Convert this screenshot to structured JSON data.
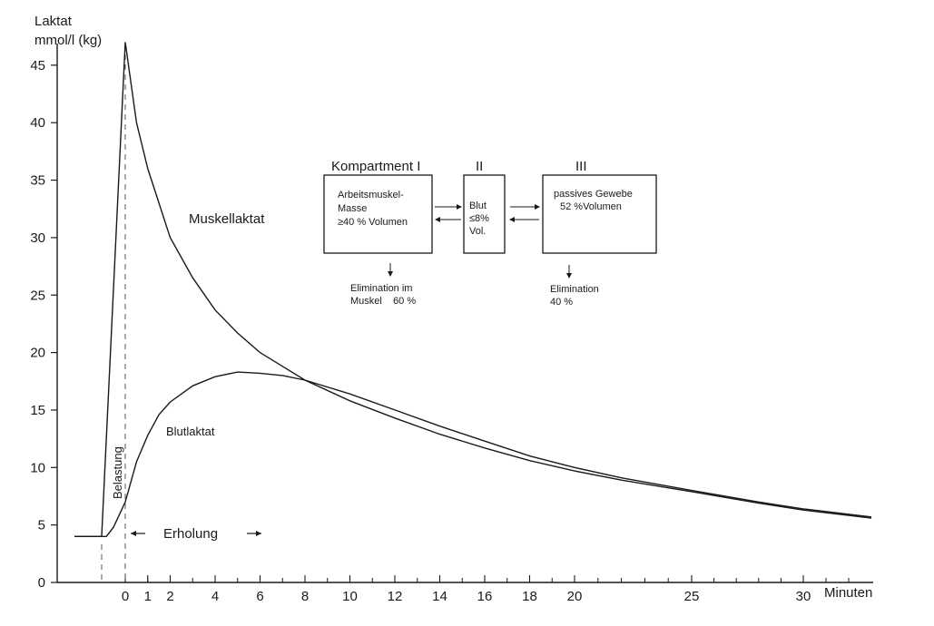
{
  "chart_data": {
    "type": "line",
    "ylabel_line1": "Laktat",
    "ylabel_line2": "mmol/l (kg)",
    "xlabel": "Minuten",
    "ylim": [
      0,
      47
    ],
    "y_ticks": [
      0,
      5,
      10,
      15,
      20,
      25,
      30,
      35,
      40,
      45
    ],
    "x_tick_labels": [
      "0",
      "1",
      "2",
      "4",
      "6",
      "8",
      "10",
      "12",
      "14",
      "16",
      "18",
      "20",
      "25",
      "30"
    ],
    "x_tick_values": [
      0,
      1,
      2,
      4,
      6,
      8,
      10,
      12,
      14,
      16,
      18,
      20,
      25,
      30
    ],
    "series": [
      {
        "name": "Muskellaktat",
        "x": [
          -1,
          0,
          0.5,
          1,
          2,
          3,
          4,
          5,
          6,
          7,
          8,
          10,
          12,
          14,
          16,
          18,
          20,
          22,
          25,
          28,
          30,
          33
        ],
        "y": [
          4,
          47,
          40,
          36,
          30,
          26.5,
          23.7,
          21.7,
          20,
          18.8,
          17.6,
          15.8,
          14.3,
          12.9,
          11.7,
          10.6,
          9.7,
          8.9,
          7.9,
          6.9,
          6.3,
          5.6
        ]
      },
      {
        "name": "Blutlaktat",
        "x": [
          -1,
          -0.8,
          -0.5,
          0,
          0.5,
          1,
          1.5,
          2,
          3,
          4,
          5,
          6,
          7,
          8,
          10,
          12,
          14,
          16,
          18,
          20,
          22,
          25,
          28,
          30,
          33
        ],
        "y": [
          4,
          4,
          4.8,
          7,
          10.5,
          12.8,
          14.6,
          15.7,
          17.1,
          17.9,
          18.3,
          18.2,
          18,
          17.6,
          16.4,
          15,
          13.6,
          12.3,
          11,
          10,
          9.1,
          8,
          7,
          6.4,
          5.7
        ]
      }
    ],
    "baseline_value": 4,
    "labels": {
      "muskel": "Muskellaktat",
      "blut": "Blutlaktat",
      "belastung": "Belastung",
      "erholung": "Erholung"
    },
    "diagram": {
      "title": "Kompartment I",
      "roman_2": "II",
      "roman_3": "III",
      "box1": [
        "Arbeitsmuskel-",
        "Masse",
        "≥40 % Volumen"
      ],
      "box2": [
        "Blut",
        "≤8%",
        "Vol."
      ],
      "box3": [
        "passives Gewebe",
        "52 %Volumen"
      ],
      "elim1": [
        "Elimination im",
        "Muskel    60 %"
      ],
      "elim3": [
        "Elimination",
        "40 %"
      ]
    }
  }
}
